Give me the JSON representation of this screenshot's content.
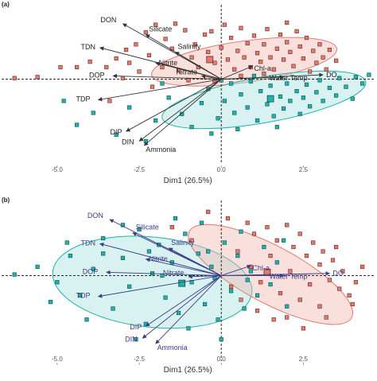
{
  "panels": [
    {
      "letter": "(a)",
      "xlabel": "Dim1 (26.5%)",
      "ticks": [
        "-5.0",
        "-2.5",
        "0.0",
        "2.5"
      ]
    },
    {
      "letter": "(b)",
      "xlabel": "Dim1 (26.5%)",
      "ticks": [
        "-5.0",
        "-2.5",
        "0.0",
        "2.5"
      ]
    }
  ],
  "colors": {
    "group1": "#e8786c",
    "group1_edge": "#5a2a25",
    "group1_ellipse": "#f3b5ae",
    "group2": "#1fb3ad",
    "group2_edge": "#0f4e4b",
    "group2_ellipse": "#9fe0dc",
    "arrow_a": "#333333",
    "arrow_b": "#3d3a86"
  },
  "chart_data": [
    {
      "type": "scatter",
      "title": "",
      "panel": "(a)",
      "xlabel": "Dim1 (26.5%)",
      "ylabel": "",
      "xlim": [
        -6.5,
        4.6
      ],
      "ylim": [
        -3.6,
        3.2
      ],
      "xticks": [
        -5.0,
        -2.5,
        0.0,
        2.5
      ],
      "reference_lines": {
        "x": 0,
        "y": 0,
        "style": "dashed"
      },
      "variables": [
        {
          "name": "DON",
          "x": -3.0,
          "y": 2.55
        },
        {
          "name": "Silicate",
          "x": -2.3,
          "y": 2.05
        },
        {
          "name": "TDN",
          "x": -3.7,
          "y": 1.45
        },
        {
          "name": "Salinity",
          "x": -1.4,
          "y": 1.25
        },
        {
          "name": "Nitrite",
          "x": -2.0,
          "y": 0.75
        },
        {
          "name": "DOP",
          "x": -3.3,
          "y": 0.15
        },
        {
          "name": "Nitrate",
          "x": -0.6,
          "y": 0.15
        },
        {
          "name": "Chl-a",
          "x": 0.95,
          "y": 0.6
        },
        {
          "name": "Water Temp",
          "x": 1.9,
          "y": 0.1
        },
        {
          "name": "DO",
          "x": 3.1,
          "y": 0.2
        },
        {
          "name": "TDP",
          "x": -3.75,
          "y": -0.95
        },
        {
          "name": "DIP",
          "x": -2.9,
          "y": -2.4
        },
        {
          "name": "DIN",
          "x": -2.5,
          "y": -2.85
        },
        {
          "name": "Ammonia",
          "x": -2.35,
          "y": -3.05
        }
      ],
      "groups": [
        {
          "id": "group1",
          "centroid": [
            -0.35,
            0.9
          ],
          "ellipse": {
            "cx": 0.7,
            "cy": 0.8,
            "rx": 2.85,
            "ry": 0.95,
            "angle": 8
          },
          "points": [
            [
              -6.3,
              0.05
            ],
            [
              -5.6,
              0.1
            ],
            [
              -4.9,
              0.55
            ],
            [
              -4.4,
              0.55
            ],
            [
              -4.0,
              0.8
            ],
            [
              -3.5,
              0.55
            ],
            [
              -3.2,
              0.95
            ],
            [
              -3.0,
              0.05
            ],
            [
              -2.9,
              1.35
            ],
            [
              -2.8,
              0.75
            ],
            [
              -2.6,
              1.6
            ],
            [
              -2.5,
              0.35
            ],
            [
              -2.3,
              2.15
            ],
            [
              -2.2,
              1.1
            ],
            [
              -2.0,
              2.5
            ],
            [
              -1.8,
              0.55
            ],
            [
              -1.7,
              1.85
            ],
            [
              -1.5,
              1.4
            ],
            [
              -1.4,
              2.55
            ],
            [
              -1.3,
              0.4
            ],
            [
              -1.1,
              2.25
            ],
            [
              -0.9,
              1.0
            ],
            [
              -0.8,
              1.6
            ],
            [
              -0.7,
              0.55
            ],
            [
              -0.5,
              2.05
            ],
            [
              -0.4,
              1.25
            ],
            [
              -0.3,
              2.2
            ],
            [
              -0.2,
              0.75
            ],
            [
              0.0,
              1.45
            ],
            [
              0.1,
              2.5
            ],
            [
              0.2,
              0.9
            ],
            [
              0.3,
              1.9
            ],
            [
              0.4,
              0.45
            ],
            [
              0.5,
              1.3
            ],
            [
              0.6,
              2.35
            ],
            [
              0.7,
              1.0
            ],
            [
              0.8,
              1.65
            ],
            [
              0.9,
              0.55
            ],
            [
              1.0,
              2.0
            ],
            [
              1.1,
              1.2
            ],
            [
              1.2,
              0.8
            ],
            [
              1.3,
              1.6
            ],
            [
              1.4,
              2.3
            ],
            [
              1.5,
              1.0
            ],
            [
              1.6,
              0.45
            ],
            [
              1.7,
              1.4
            ],
            [
              1.8,
              2.05
            ],
            [
              1.9,
              0.9
            ],
            [
              2.0,
              1.7
            ],
            [
              2.1,
              1.25
            ],
            [
              2.2,
              0.6
            ],
            [
              2.3,
              2.2
            ],
            [
              2.4,
              1.5
            ],
            [
              2.5,
              0.95
            ],
            [
              2.6,
              1.9
            ],
            [
              2.7,
              0.35
            ],
            [
              2.8,
              1.3
            ],
            [
              2.9,
              0.75
            ],
            [
              3.0,
              1.6
            ],
            [
              3.1,
              1.0
            ],
            [
              3.2,
              0.45
            ],
            [
              3.3,
              1.35
            ],
            [
              3.5,
              0.85
            ],
            [
              -1.0,
              -0.05
            ],
            [
              -0.2,
              -0.1
            ],
            [
              0.6,
              0.15
            ],
            [
              1.3,
              0.25
            ],
            [
              -2.1,
              -0.35
            ],
            [
              -3.4,
              -1.0
            ],
            [
              2.0,
              2.6
            ]
          ]
        },
        {
          "id": "group2",
          "centroid": [
            1.5,
            -0.9
          ],
          "ellipse": {
            "cx": 1.3,
            "cy": -0.95,
            "rx": 3.15,
            "ry": 1.05,
            "angle": 10
          },
          "points": [
            [
              -4.8,
              -1.0
            ],
            [
              -4.4,
              -2.1
            ],
            [
              -3.9,
              -1.55
            ],
            [
              -3.2,
              -2.55
            ],
            [
              -2.8,
              -1.3
            ],
            [
              -2.3,
              -2.85
            ],
            [
              -2.0,
              -1.9
            ],
            [
              -1.6,
              -0.85
            ],
            [
              -1.2,
              -1.6
            ],
            [
              -0.9,
              -2.2
            ],
            [
              -0.6,
              -1.1
            ],
            [
              -0.4,
              -0.45
            ],
            [
              -0.1,
              -1.8
            ],
            [
              0.1,
              -1.0
            ],
            [
              0.3,
              -0.2
            ],
            [
              0.4,
              -1.55
            ],
            [
              0.6,
              -0.7
            ],
            [
              0.8,
              -1.3
            ],
            [
              0.9,
              -0.1
            ],
            [
              1.1,
              -1.9
            ],
            [
              1.2,
              -0.55
            ],
            [
              1.4,
              -1.15
            ],
            [
              1.5,
              -0.3
            ],
            [
              1.6,
              -1.7
            ],
            [
              1.8,
              -0.8
            ],
            [
              1.9,
              -1.35
            ],
            [
              2.0,
              -0.2
            ],
            [
              2.1,
              -1.0
            ],
            [
              2.3,
              -0.55
            ],
            [
              2.4,
              -1.6
            ],
            [
              2.5,
              -0.85
            ],
            [
              2.6,
              -0.25
            ],
            [
              2.7,
              -1.25
            ],
            [
              2.9,
              -0.6
            ],
            [
              3.0,
              -0.05
            ],
            [
              3.1,
              -1.0
            ],
            [
              3.3,
              -0.4
            ],
            [
              3.5,
              -0.75
            ],
            [
              3.6,
              0.05
            ],
            [
              3.8,
              -0.35
            ],
            [
              4.0,
              -0.9
            ],
            [
              4.1,
              0.1
            ],
            [
              4.3,
              -0.2
            ],
            [
              4.5,
              0.2
            ],
            [
              1.0,
              0.15
            ],
            [
              0.5,
              -2.3
            ],
            [
              -1.8,
              -0.2
            ],
            [
              -0.3,
              -2.5
            ],
            [
              1.7,
              -2.2
            ],
            [
              0.0,
              -0.05
            ]
          ]
        }
      ]
    },
    {
      "type": "scatter",
      "title": "",
      "panel": "(b)",
      "xlabel": "Dim1 (26.5%)",
      "ylabel": "",
      "xlim": [
        -6.5,
        4.6
      ],
      "ylim": [
        -3.6,
        3.2
      ],
      "xticks": [
        -5.0,
        -2.5,
        0.0,
        2.5
      ],
      "reference_lines": {
        "x": 0,
        "y": 0,
        "style": "dashed"
      },
      "variables": [
        {
          "name": "DON",
          "x": -3.4,
          "y": 2.55
        },
        {
          "name": "Silicate",
          "x": -2.7,
          "y": 1.95
        },
        {
          "name": "TDN",
          "x": -3.7,
          "y": 1.45
        },
        {
          "name": "Salinity",
          "x": -1.6,
          "y": 1.25
        },
        {
          "name": "Nitrite",
          "x": -2.3,
          "y": 0.75
        },
        {
          "name": "DOP",
          "x": -3.5,
          "y": 0.15
        },
        {
          "name": "Nitrate",
          "x": -1.0,
          "y": -0.05
        },
        {
          "name": "Chl-a",
          "x": 0.9,
          "y": 0.45
        },
        {
          "name": "Water Temp",
          "x": 1.9,
          "y": 0.0
        },
        {
          "name": "DO",
          "x": 3.3,
          "y": 0.1
        },
        {
          "name": "TDP",
          "x": -3.75,
          "y": -0.95
        },
        {
          "name": "DIP",
          "x": -2.3,
          "y": -2.3
        },
        {
          "name": "DIN",
          "x": -2.4,
          "y": -2.85
        },
        {
          "name": "Ammonia",
          "x": -2.0,
          "y": -3.1
        }
      ],
      "groups": [
        {
          "id": "group2",
          "centroid": [
            -1.2,
            -0.35
          ],
          "ellipse": {
            "cx": -2.1,
            "cy": -0.3,
            "rx": 3.05,
            "ry": 2.05,
            "angle": -6
          },
          "points": [
            [
              -6.3,
              0.05
            ],
            [
              -5.6,
              0.4
            ],
            [
              -5.0,
              -0.3
            ],
            [
              -4.6,
              0.9
            ],
            [
              -4.3,
              -0.9
            ],
            [
              -3.9,
              0.3
            ],
            [
              -3.6,
              1.7
            ],
            [
              -3.3,
              -1.5
            ],
            [
              -3.0,
              0.8
            ],
            [
              -2.8,
              -0.5
            ],
            [
              -2.5,
              2.1
            ],
            [
              -2.3,
              -2.2
            ],
            [
              -2.1,
              0.1
            ],
            [
              -1.9,
              1.4
            ],
            [
              -1.7,
              -1.0
            ],
            [
              -1.5,
              0.6
            ],
            [
              -1.3,
              -1.7
            ],
            [
              -1.1,
              1.9
            ],
            [
              -0.9,
              -0.3
            ],
            [
              -0.7,
              1.0
            ],
            [
              -0.5,
              -1.3
            ],
            [
              -0.3,
              0.4
            ],
            [
              -0.1,
              -2.0
            ],
            [
              0.1,
              1.5
            ],
            [
              0.3,
              -0.7
            ],
            [
              0.5,
              0.9
            ],
            [
              0.7,
              -1.5
            ],
            [
              0.9,
              0.2
            ],
            [
              1.1,
              -0.9
            ],
            [
              1.3,
              1.3
            ],
            [
              1.5,
              -0.4
            ],
            [
              1.7,
              0.6
            ],
            [
              -4.1,
              -2.0
            ],
            [
              -2.6,
              -2.9
            ],
            [
              -1.4,
              2.6
            ],
            [
              -0.6,
              2.4
            ],
            [
              -3.6,
              1.0
            ],
            [
              -2.2,
              1.1
            ],
            [
              -0.2,
              -0.1
            ],
            [
              0.6,
              2.0
            ],
            [
              -1.0,
              -2.4
            ],
            [
              -3.0,
              2.3
            ],
            [
              2.0,
              -1.4
            ],
            [
              -4.7,
              1.5
            ],
            [
              -5.2,
              -1.2
            ],
            [
              1.9,
              1.6
            ],
            [
              0.0,
              -2.9
            ],
            [
              -1.8,
              0.0
            ],
            [
              -0.4,
              1.1
            ],
            [
              0.8,
              -0.2
            ]
          ]
        },
        {
          "id": "group1",
          "centroid": [
            1.4,
            0.15
          ],
          "ellipse": {
            "cx": 1.5,
            "cy": 0.05,
            "rx": 2.8,
            "ry": 1.3,
            "angle": -28
          },
          "points": [
            [
              -0.4,
              2.9
            ],
            [
              0.2,
              2.6
            ],
            [
              0.8,
              2.4
            ],
            [
              1.0,
              1.9
            ],
            [
              1.4,
              2.2
            ],
            [
              1.7,
              1.6
            ],
            [
              2.0,
              2.3
            ],
            [
              2.2,
              1.3
            ],
            [
              2.4,
              1.9
            ],
            [
              2.6,
              0.9
            ],
            [
              2.8,
              1.5
            ],
            [
              3.0,
              0.5
            ],
            [
              3.1,
              1.1
            ],
            [
              3.3,
              -0.2
            ],
            [
              3.4,
              0.7
            ],
            [
              3.6,
              -0.6
            ],
            [
              3.7,
              0.2
            ],
            [
              3.9,
              -0.9
            ],
            [
              4.1,
              -0.3
            ],
            [
              4.3,
              0.4
            ],
            [
              0.5,
              1.1
            ],
            [
              0.9,
              0.4
            ],
            [
              1.2,
              -0.3
            ],
            [
              1.5,
              0.9
            ],
            [
              1.8,
              -0.8
            ],
            [
              2.1,
              0.2
            ],
            [
              2.4,
              -1.1
            ],
            [
              2.7,
              -0.4
            ],
            [
              3.0,
              -1.4
            ],
            [
              3.2,
              -1.9
            ],
            [
              0.3,
              -0.5
            ],
            [
              0.6,
              -1.1
            ],
            [
              1.1,
              -1.6
            ],
            [
              1.6,
              -2.0
            ],
            [
              2.0,
              -1.9
            ],
            [
              2.5,
              -2.4
            ],
            [
              -1.5,
              2.2
            ],
            [
              -0.9,
              1.6
            ],
            [
              3.5,
              1.3
            ],
            [
              4.0,
              -1.3
            ]
          ]
        }
      ]
    }
  ]
}
